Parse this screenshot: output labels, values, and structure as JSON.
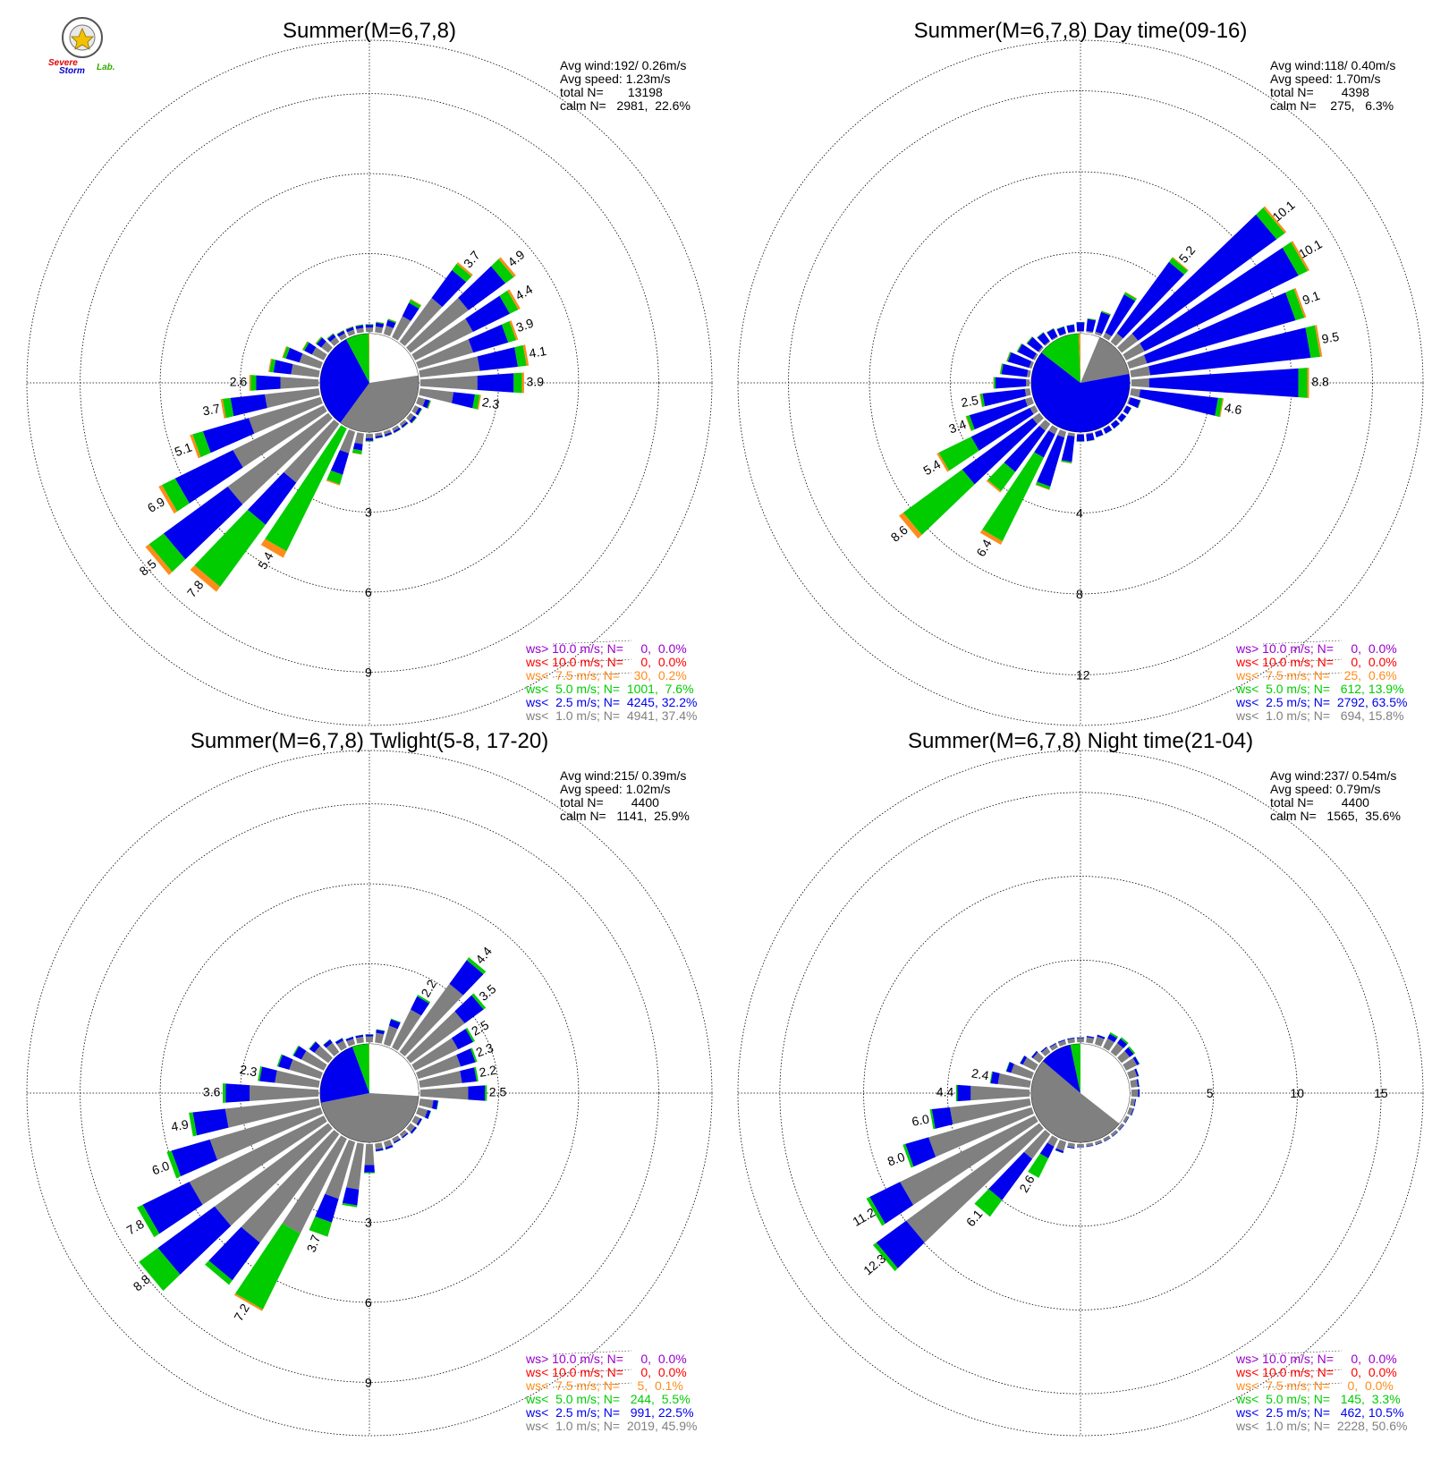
{
  "logo": {
    "line1": "Severe",
    "line2": "Storm",
    "line3": "Lab."
  },
  "colors": {
    "ws_gt10": "#9900cc",
    "ws_lt10": "#ff0000",
    "ws_lt7_5": "#ff8c1a",
    "ws_lt5": "#00cc00",
    "ws_lt2_5": "#0000ee",
    "ws_lt1": "#808080",
    "calm": "#ffffff"
  },
  "chart_data": [
    {
      "type": "windrose",
      "title": "Summer(M=6,7,8)",
      "stats": [
        "Avg wind:192/ 0.26m/s",
        "Avg speed: 1.23m/s",
        "total N=       13198",
        "calm N=   2981,  22.6%"
      ],
      "legend": [
        {
          "text": "ws> 10.0 m/s; N=     0,  0.0%",
          "color": "#9900cc"
        },
        {
          "text": "ws< 10.0 m/s; N=     0,  0.0%",
          "color": "#ff0000"
        },
        {
          "text": "ws<  7.5 m/s; N=    30,  0.2%",
          "color": "#ff8c1a"
        },
        {
          "text": "ws<  5.0 m/s; N=  1001,  7.6%",
          "color": "#00cc00"
        },
        {
          "text": "ws<  2.5 m/s; N=  4245, 32.2%",
          "color": "#0000ee"
        },
        {
          "text": "ws<  1.0 m/s; N=  4941, 37.4%",
          "color": "#808080"
        }
      ],
      "ring_labels": [
        "3",
        "6",
        "9"
      ],
      "rmax": 11,
      "inner_pie": [
        22.6,
        37.4,
        32.2,
        7.6,
        0.2
      ],
      "bars": [
        {
          "dir": 0,
          "total": 0.3,
          "label": ""
        },
        {
          "dir": 10,
          "total": 0.4,
          "label": ""
        },
        {
          "dir": 20,
          "total": 0.6,
          "label": ""
        },
        {
          "dir": 30,
          "total": 1.6,
          "label": ""
        },
        {
          "dir": 40,
          "total": 3.7,
          "label": "3.7"
        },
        {
          "dir": 50,
          "total": 4.9,
          "label": "4.9"
        },
        {
          "dir": 60,
          "total": 4.4,
          "label": "4.4"
        },
        {
          "dir": 70,
          "total": 3.9,
          "label": "3.9"
        },
        {
          "dir": 80,
          "total": 4.1,
          "label": "4.1"
        },
        {
          "dir": 90,
          "total": 3.9,
          "label": "3.9"
        },
        {
          "dir": 100,
          "total": 2.3,
          "label": "2.3"
        },
        {
          "dir": 110,
          "total": 0.5,
          "label": ""
        },
        {
          "dir": 120,
          "total": 0.3,
          "label": ""
        },
        {
          "dir": 130,
          "total": 0.3,
          "label": ""
        },
        {
          "dir": 140,
          "total": 0.2,
          "label": ""
        },
        {
          "dir": 150,
          "total": 0.2,
          "label": ""
        },
        {
          "dir": 160,
          "total": 0.2,
          "label": ""
        },
        {
          "dir": 170,
          "total": 0.2,
          "label": ""
        },
        {
          "dir": 180,
          "total": 0.3,
          "label": ""
        },
        {
          "dir": 190,
          "total": 0.8,
          "label": ""
        },
        {
          "dir": 200,
          "total": 2.1,
          "label": ""
        },
        {
          "dir": 210,
          "total": 5.4,
          "label": "5.4"
        },
        {
          "dir": 220,
          "total": 7.8,
          "label": "7.8"
        },
        {
          "dir": 230,
          "total": 8.5,
          "label": "8.5"
        },
        {
          "dir": 240,
          "total": 6.9,
          "label": "6.9"
        },
        {
          "dir": 250,
          "total": 5.1,
          "label": "5.1"
        },
        {
          "dir": 260,
          "total": 3.7,
          "label": "3.7"
        },
        {
          "dir": 270,
          "total": 2.6,
          "label": "2.6"
        },
        {
          "dir": 280,
          "total": 1.9,
          "label": ""
        },
        {
          "dir": 290,
          "total": 1.5,
          "label": ""
        },
        {
          "dir": 300,
          "total": 0.9,
          "label": ""
        },
        {
          "dir": 310,
          "total": 0.6,
          "label": ""
        },
        {
          "dir": 320,
          "total": 0.4,
          "label": ""
        },
        {
          "dir": 330,
          "total": 0.3,
          "label": ""
        },
        {
          "dir": 340,
          "total": 0.3,
          "label": ""
        },
        {
          "dir": 350,
          "total": 0.3,
          "label": ""
        }
      ],
      "bar_default_split": [
        0.55,
        0.35,
        0.08,
        0.02
      ],
      "bar_split_overrides": {
        "210": [
          0.0,
          0.0,
          0.95,
          0.05
        ],
        "220": [
          0.35,
          0.25,
          0.37,
          0.03
        ],
        "200": [
          0.4,
          0.4,
          0.18,
          0.02
        ],
        "190": [
          0.5,
          0.3,
          0.18,
          0.02
        ]
      }
    },
    {
      "type": "windrose",
      "title": "Summer(M=6,7,8) Day time(09-16)",
      "stats": [
        "Avg wind:118/ 0.40m/s",
        "Avg speed: 1.70m/s",
        "total N=        4398",
        "calm N=    275,   6.3%"
      ],
      "legend": [
        {
          "text": "ws> 10.0 m/s; N=     0,  0.0%",
          "color": "#9900cc"
        },
        {
          "text": "ws< 10.0 m/s; N=     0,  0.0%",
          "color": "#ff0000"
        },
        {
          "text": "ws<  7.5 m/s; N=    25,  0.6%",
          "color": "#ff8c1a"
        },
        {
          "text": "ws<  5.0 m/s; N=   612, 13.9%",
          "color": "#00cc00"
        },
        {
          "text": "ws<  2.5 m/s; N=  2792, 63.5%",
          "color": "#0000ee"
        },
        {
          "text": "ws<  1.0 m/s; N=   694, 15.8%",
          "color": "#808080"
        }
      ],
      "ring_labels": [
        "4",
        "8",
        "12"
      ],
      "rmax": 14.5,
      "inner_pie": [
        6.3,
        15.8,
        63.5,
        13.9,
        0.6
      ],
      "bars": [
        {
          "dir": 0,
          "total": 0.5,
          "label": ""
        },
        {
          "dir": 10,
          "total": 0.7,
          "label": ""
        },
        {
          "dir": 20,
          "total": 1.2,
          "label": ""
        },
        {
          "dir": 30,
          "total": 2.5,
          "label": ""
        },
        {
          "dir": 40,
          "total": 5.2,
          "label": "5.2"
        },
        {
          "dir": 50,
          "total": 10.1,
          "label": "10.1"
        },
        {
          "dir": 60,
          "total": 10.1,
          "label": "10.1"
        },
        {
          "dir": 70,
          "total": 9.1,
          "label": "9.1"
        },
        {
          "dir": 80,
          "total": 9.5,
          "label": "9.5"
        },
        {
          "dir": 90,
          "total": 8.8,
          "label": "8.8"
        },
        {
          "dir": 100,
          "total": 4.6,
          "label": "4.6"
        },
        {
          "dir": 110,
          "total": 0.6,
          "label": ""
        },
        {
          "dir": 120,
          "total": 0.3,
          "label": ""
        },
        {
          "dir": 130,
          "total": 0.3,
          "label": ""
        },
        {
          "dir": 140,
          "total": 0.3,
          "label": ""
        },
        {
          "dir": 150,
          "total": 0.3,
          "label": ""
        },
        {
          "dir": 160,
          "total": 0.3,
          "label": ""
        },
        {
          "dir": 170,
          "total": 0.4,
          "label": ""
        },
        {
          "dir": 180,
          "total": 0.4,
          "label": ""
        },
        {
          "dir": 190,
          "total": 1.5,
          "label": ""
        },
        {
          "dir": 200,
          "total": 3.0,
          "label": ""
        },
        {
          "dir": 210,
          "total": 6.4,
          "label": "6.4"
        },
        {
          "dir": 220,
          "total": 4.2,
          "label": ""
        },
        {
          "dir": 230,
          "total": 8.6,
          "label": "8.6"
        },
        {
          "dir": 240,
          "total": 5.4,
          "label": "5.4"
        },
        {
          "dir": 250,
          "total": 3.4,
          "label": "3.4"
        },
        {
          "dir": 260,
          "total": 2.5,
          "label": "2.5"
        },
        {
          "dir": 270,
          "total": 1.8,
          "label": ""
        },
        {
          "dir": 280,
          "total": 1.5,
          "label": ""
        },
        {
          "dir": 290,
          "total": 1.3,
          "label": ""
        },
        {
          "dir": 300,
          "total": 1.0,
          "label": ""
        },
        {
          "dir": 310,
          "total": 0.8,
          "label": ""
        },
        {
          "dir": 320,
          "total": 0.6,
          "label": ""
        },
        {
          "dir": 330,
          "total": 0.5,
          "label": ""
        },
        {
          "dir": 340,
          "total": 0.4,
          "label": ""
        },
        {
          "dir": 350,
          "total": 0.4,
          "label": ""
        }
      ],
      "bar_default_split": [
        0.1,
        0.84,
        0.05,
        0.01
      ],
      "bar_split_overrides": {
        "210": [
          0.05,
          0.2,
          0.72,
          0.03
        ],
        "230": [
          0.05,
          0.5,
          0.42,
          0.03
        ],
        "240": [
          0.05,
          0.6,
          0.33,
          0.02
        ],
        "220": [
          0.1,
          0.6,
          0.28,
          0.02
        ]
      }
    },
    {
      "type": "windrose",
      "title": "Summer(M=6,7,8) Twlight(5-8, 17-20)",
      "stats": [
        "Avg wind:215/ 0.39m/s",
        "Avg speed: 1.02m/s",
        "total N=        4400",
        "calm N=   1141,  25.9%"
      ],
      "legend": [
        {
          "text": "ws> 10.0 m/s; N=     0,  0.0%",
          "color": "#9900cc"
        },
        {
          "text": "ws< 10.0 m/s; N=     0,  0.0%",
          "color": "#ff0000"
        },
        {
          "text": "ws<  7.5 m/s; N=     5,  0.1%",
          "color": "#ff8c1a"
        },
        {
          "text": "ws<  5.0 m/s; N=   244,  5.5%",
          "color": "#00cc00"
        },
        {
          "text": "ws<  2.5 m/s; N=   991, 22.5%",
          "color": "#0000ee"
        },
        {
          "text": "ws<  1.0 m/s; N=  2019, 45.9%",
          "color": "#808080"
        }
      ],
      "ring_labels": [
        "3",
        "6",
        "9"
      ],
      "rmax": 11,
      "inner_pie": [
        25.9,
        45.9,
        22.5,
        5.5,
        0.1
      ],
      "bars": [
        {
          "dir": 0,
          "total": 0.3,
          "label": ""
        },
        {
          "dir": 10,
          "total": 0.5,
          "label": ""
        },
        {
          "dir": 20,
          "total": 1.0,
          "label": ""
        },
        {
          "dir": 30,
          "total": 2.2,
          "label": "2.2"
        },
        {
          "dir": 40,
          "total": 4.4,
          "label": "4.4"
        },
        {
          "dir": 50,
          "total": 3.5,
          "label": "3.5"
        },
        {
          "dir": 60,
          "total": 2.5,
          "label": "2.5"
        },
        {
          "dir": 70,
          "total": 2.3,
          "label": "2.3"
        },
        {
          "dir": 80,
          "total": 2.2,
          "label": "2.2"
        },
        {
          "dir": 90,
          "total": 2.5,
          "label": "2.5"
        },
        {
          "dir": 100,
          "total": 0.7,
          "label": ""
        },
        {
          "dir": 110,
          "total": 0.5,
          "label": ""
        },
        {
          "dir": 120,
          "total": 0.3,
          "label": ""
        },
        {
          "dir": 130,
          "total": 0.3,
          "label": ""
        },
        {
          "dir": 140,
          "total": 0.2,
          "label": ""
        },
        {
          "dir": 150,
          "total": 0.2,
          "label": ""
        },
        {
          "dir": 160,
          "total": 0.3,
          "label": ""
        },
        {
          "dir": 170,
          "total": 0.3,
          "label": ""
        },
        {
          "dir": 180,
          "total": 1.1,
          "label": ""
        },
        {
          "dir": 190,
          "total": 2.4,
          "label": ""
        },
        {
          "dir": 200,
          "total": 3.7,
          "label": "3.7"
        },
        {
          "dir": 210,
          "total": 7.2,
          "label": "7.2"
        },
        {
          "dir": 220,
          "total": 7.0,
          "label": ""
        },
        {
          "dir": 230,
          "total": 8.8,
          "label": "8.8"
        },
        {
          "dir": 240,
          "total": 7.8,
          "label": "7.8"
        },
        {
          "dir": 250,
          "total": 6.0,
          "label": "6.0"
        },
        {
          "dir": 260,
          "total": 4.9,
          "label": "4.9"
        },
        {
          "dir": 270,
          "total": 3.6,
          "label": "3.6"
        },
        {
          "dir": 280,
          "total": 2.3,
          "label": "2.3"
        },
        {
          "dir": 290,
          "total": 1.7,
          "label": ""
        },
        {
          "dir": 300,
          "total": 1.3,
          "label": ""
        },
        {
          "dir": 310,
          "total": 0.9,
          "label": ""
        },
        {
          "dir": 320,
          "total": 0.6,
          "label": ""
        },
        {
          "dir": 330,
          "total": 0.4,
          "label": ""
        },
        {
          "dir": 340,
          "total": 0.3,
          "label": ""
        },
        {
          "dir": 350,
          "total": 0.3,
          "label": ""
        }
      ],
      "bar_default_split": [
        0.72,
        0.25,
        0.03,
        0.0
      ],
      "bar_split_overrides": {
        "210": [
          0.55,
          0.0,
          0.44,
          0.01
        ],
        "230": [
          0.6,
          0.3,
          0.1,
          0.0
        ],
        "200": [
          0.6,
          0.25,
          0.15,
          0.0
        ]
      }
    },
    {
      "type": "windrose",
      "title": "Summer(M=6,7,8) Night time(21-04)",
      "stats": [
        "Avg wind:237/ 0.54m/s",
        "Avg speed: 0.79m/s",
        "total N=        4400",
        "calm N=   1565,  35.6%"
      ],
      "legend": [
        {
          "text": "ws> 10.0 m/s; N=     0,  0.0%",
          "color": "#9900cc"
        },
        {
          "text": "ws< 10.0 m/s; N=     0,  0.0%",
          "color": "#ff0000"
        },
        {
          "text": "ws<  7.5 m/s; N=     0,  0.0%",
          "color": "#ff8c1a"
        },
        {
          "text": "ws<  5.0 m/s; N=   145,  3.3%",
          "color": "#00cc00"
        },
        {
          "text": "ws<  2.5 m/s; N=   462, 10.5%",
          "color": "#0000ee"
        },
        {
          "text": "ws<  1.0 m/s; N=  2228, 50.6%",
          "color": "#808080"
        }
      ],
      "ring_labels": [
        "5",
        "10",
        "15"
      ],
      "rmax": 17.5,
      "inner_pie": [
        35.6,
        50.6,
        10.5,
        3.3,
        0.0
      ],
      "bars": [
        {
          "dir": 0,
          "total": 0.3,
          "label": ""
        },
        {
          "dir": 10,
          "total": 0.4,
          "label": ""
        },
        {
          "dir": 20,
          "total": 0.6,
          "label": ""
        },
        {
          "dir": 30,
          "total": 1.0,
          "label": ""
        },
        {
          "dir": 40,
          "total": 1.1,
          "label": ""
        },
        {
          "dir": 50,
          "total": 1.0,
          "label": ""
        },
        {
          "dir": 60,
          "total": 0.9,
          "label": ""
        },
        {
          "dir": 70,
          "total": 0.6,
          "label": ""
        },
        {
          "dir": 80,
          "total": 0.5,
          "label": ""
        },
        {
          "dir": 90,
          "total": 0.5,
          "label": ""
        },
        {
          "dir": 100,
          "total": 0.3,
          "label": ""
        },
        {
          "dir": 110,
          "total": 0.3,
          "label": ""
        },
        {
          "dir": 120,
          "total": 0.2,
          "label": ""
        },
        {
          "dir": 130,
          "total": 0.2,
          "label": ""
        },
        {
          "dir": 140,
          "total": 0.2,
          "label": ""
        },
        {
          "dir": 150,
          "total": 0.2,
          "label": ""
        },
        {
          "dir": 160,
          "total": 0.2,
          "label": ""
        },
        {
          "dir": 170,
          "total": 0.2,
          "label": ""
        },
        {
          "dir": 180,
          "total": 0.2,
          "label": ""
        },
        {
          "dir": 190,
          "total": 0.3,
          "label": ""
        },
        {
          "dir": 200,
          "total": 0.7,
          "label": ""
        },
        {
          "dir": 210,
          "total": 2.6,
          "label": "2.6"
        },
        {
          "dir": 220,
          "total": 6.1,
          "label": "6.1"
        },
        {
          "dir": 230,
          "total": 12.3,
          "label": "12.3"
        },
        {
          "dir": 240,
          "total": 11.2,
          "label": "11.2"
        },
        {
          "dir": 250,
          "total": 8.0,
          "label": "8.0"
        },
        {
          "dir": 260,
          "total": 6.0,
          "label": "6.0"
        },
        {
          "dir": 270,
          "total": 4.4,
          "label": "4.4"
        },
        {
          "dir": 280,
          "total": 2.4,
          "label": "2.4"
        },
        {
          "dir": 290,
          "total": 1.6,
          "label": ""
        },
        {
          "dir": 300,
          "total": 1.0,
          "label": ""
        },
        {
          "dir": 310,
          "total": 0.6,
          "label": ""
        },
        {
          "dir": 320,
          "total": 0.4,
          "label": ""
        },
        {
          "dir": 330,
          "total": 0.3,
          "label": ""
        },
        {
          "dir": 340,
          "total": 0.3,
          "label": ""
        },
        {
          "dir": 350,
          "total": 0.3,
          "label": ""
        }
      ],
      "bar_default_split": [
        0.8,
        0.18,
        0.02,
        0.0
      ],
      "bar_split_overrides": {
        "210": [
          0.2,
          0.3,
          0.5,
          0.0
        ],
        "220": [
          0.3,
          0.5,
          0.2,
          0.0
        ],
        "30": [
          0.6,
          0.3,
          0.1,
          0.0
        ],
        "40": [
          0.6,
          0.3,
          0.1,
          0.0
        ],
        "50": [
          0.6,
          0.3,
          0.1,
          0.0
        ]
      }
    }
  ]
}
